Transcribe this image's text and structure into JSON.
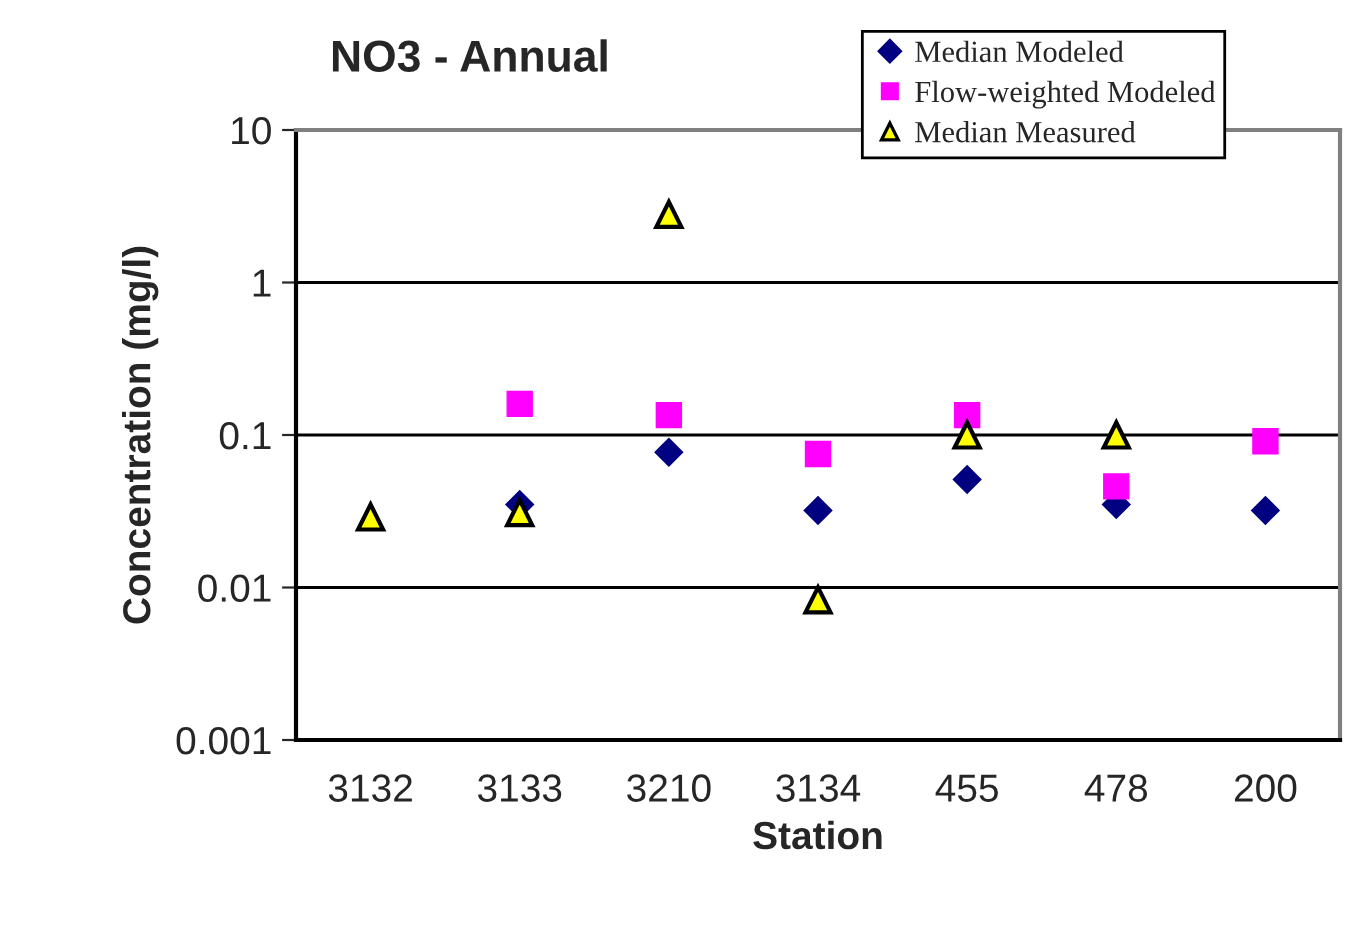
{
  "chart_data": {
    "type": "scatter",
    "title": "NO3 - Annual",
    "xlabel": "Station",
    "ylabel": "Concentration (mg/l)",
    "categories": [
      "3132",
      "3133",
      "3210",
      "3134",
      "455",
      "478",
      "200"
    ],
    "series": [
      {
        "name": "Median Modeled",
        "color": "#000080",
        "marker": "diamond",
        "values": [
          null,
          0.035,
          0.077,
          0.032,
          0.051,
          0.035,
          0.032
        ]
      },
      {
        "name": "Flow-weighted Modeled",
        "color": "#ff00ff",
        "marker": "square",
        "values": [
          null,
          0.16,
          0.135,
          0.075,
          0.135,
          0.046,
          0.091
        ]
      },
      {
        "name": "Median Measured",
        "color": "#ffff00",
        "marker": "triangle",
        "values": [
          0.029,
          0.031,
          2.8,
          0.0083,
          0.1,
          0.1,
          null
        ]
      }
    ],
    "log": true,
    "ylim": [
      0.001,
      10
    ],
    "yticks": [
      0.001,
      0.01,
      0.1,
      1,
      10
    ],
    "grid": "y",
    "legend": "top right"
  }
}
